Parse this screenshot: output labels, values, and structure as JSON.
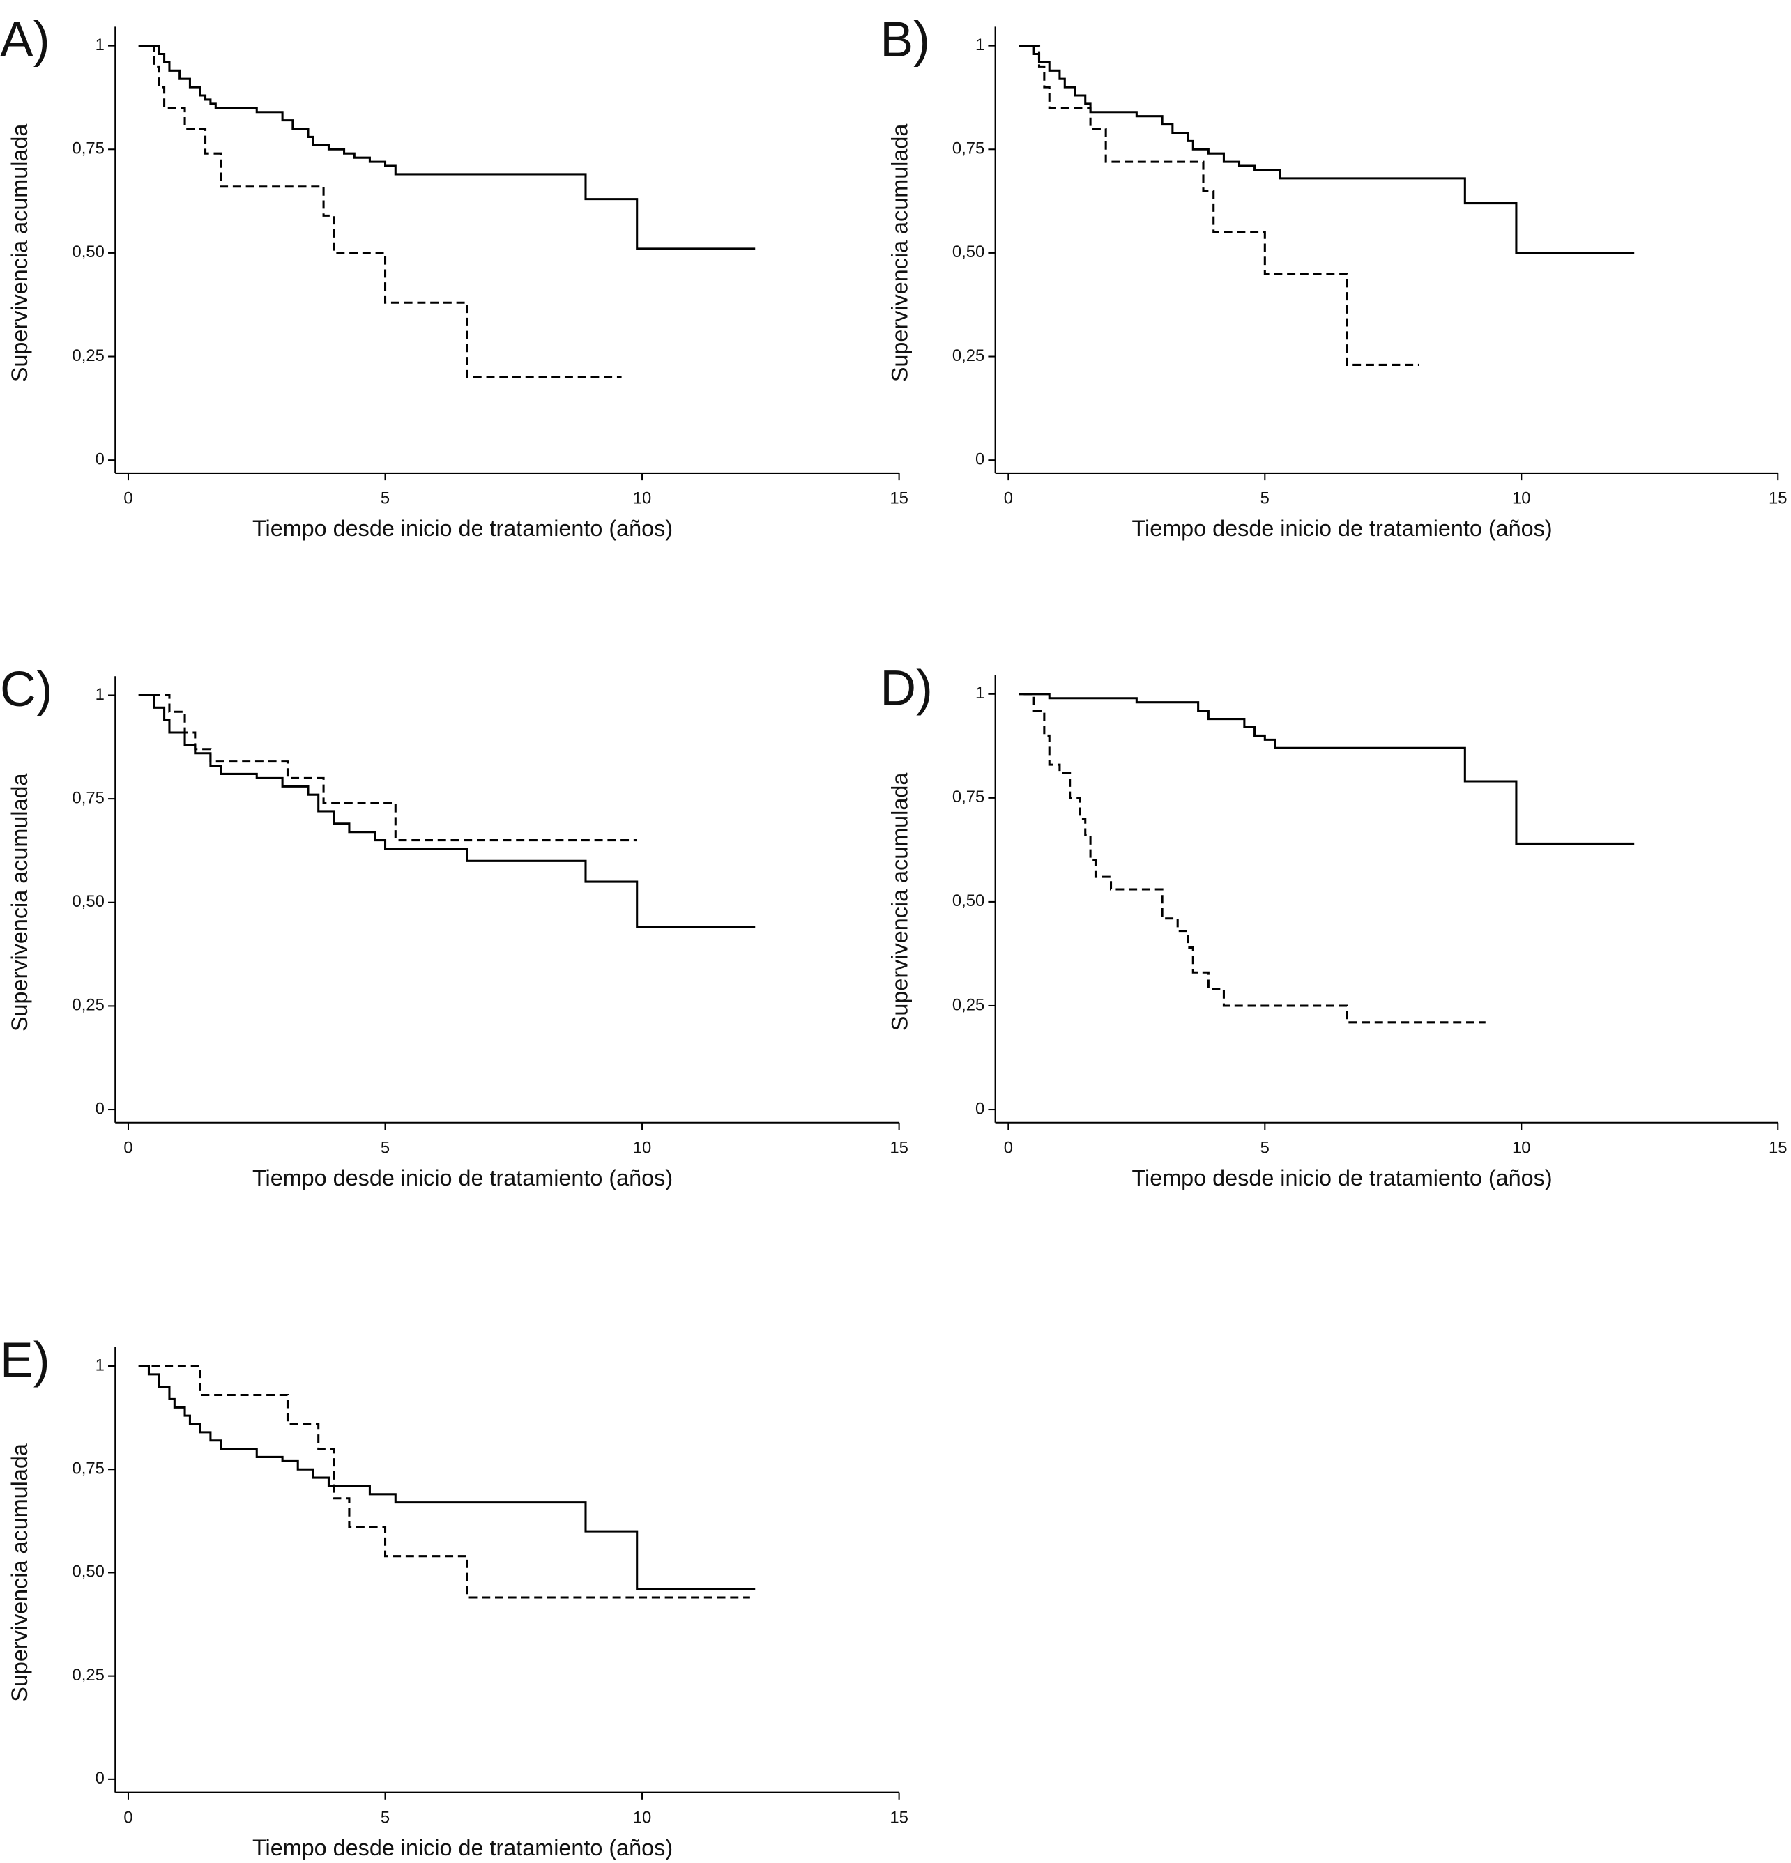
{
  "chart_data": [
    {
      "type": "line",
      "step": true,
      "label": "A)",
      "xlabel": "Tiempo desde inicio de tratamiento (años)",
      "ylabel": "Supervivencia acumulada",
      "xlim": [
        0,
        15
      ],
      "ylim": [
        0,
        1
      ],
      "xticks": [
        0,
        5,
        10,
        15
      ],
      "yticks": [
        0,
        {
          "value": 0.25,
          "label": "0,25"
        },
        {
          "value": 0.5,
          "label": "0,50"
        },
        {
          "value": 0.75,
          "label": "0,75"
        },
        1
      ],
      "series": [
        {
          "color": "#000000",
          "dashed": false,
          "x": [
            0.2,
            0.6,
            0.7,
            0.8,
            1.0,
            1.2,
            1.4,
            1.5,
            1.6,
            1.7,
            2.5,
            3.0,
            3.2,
            3.5,
            3.6,
            3.9,
            4.2,
            4.4,
            4.7,
            5.0,
            5.2,
            8.9,
            9.9,
            12.2
          ],
          "values": [
            1,
            0.98,
            0.96,
            0.94,
            0.92,
            0.9,
            0.88,
            0.87,
            0.86,
            0.85,
            0.84,
            0.82,
            0.8,
            0.78,
            0.76,
            0.75,
            0.74,
            0.73,
            0.72,
            0.71,
            0.69,
            0.63,
            0.51,
            0.51
          ]
        },
        {
          "color": "#000000",
          "dashed": true,
          "x": [
            0.2,
            0.5,
            0.6,
            0.7,
            1.1,
            1.5,
            1.8,
            3.8,
            4.0,
            5.0,
            6.6,
            9.6
          ],
          "values": [
            1,
            0.95,
            0.9,
            0.85,
            0.8,
            0.74,
            0.66,
            0.59,
            0.5,
            0.38,
            0.2,
            0.2
          ]
        }
      ]
    },
    {
      "type": "line",
      "step": true,
      "label": "B)",
      "xlabel": "Tiempo desde inicio de tratamiento (años)",
      "ylabel": "Supervivencia acumulada",
      "xlim": [
        0,
        15
      ],
      "ylim": [
        0,
        1
      ],
      "xticks": [
        0,
        5,
        10,
        15
      ],
      "yticks": [
        0,
        {
          "value": 0.25,
          "label": "0,25"
        },
        {
          "value": 0.5,
          "label": "0,50"
        },
        {
          "value": 0.75,
          "label": "0,75"
        },
        1
      ],
      "series": [
        {
          "color": "#000000",
          "dashed": false,
          "x": [
            0.2,
            0.5,
            0.6,
            0.8,
            1.0,
            1.1,
            1.3,
            1.5,
            1.6,
            2.5,
            3.0,
            3.2,
            3.5,
            3.6,
            3.9,
            4.2,
            4.5,
            4.8,
            5.3,
            8.9,
            9.9,
            12.2
          ],
          "values": [
            1,
            0.98,
            0.96,
            0.94,
            0.92,
            0.9,
            0.88,
            0.86,
            0.84,
            0.83,
            0.81,
            0.79,
            0.77,
            0.75,
            0.74,
            0.72,
            0.71,
            0.7,
            0.68,
            0.62,
            0.5,
            0.5
          ]
        },
        {
          "color": "#000000",
          "dashed": true,
          "x": [
            0.2,
            0.6,
            0.7,
            0.8,
            1.6,
            1.9,
            3.8,
            4.0,
            5.0,
            6.6,
            8.0
          ],
          "values": [
            1,
            0.95,
            0.9,
            0.85,
            0.8,
            0.72,
            0.65,
            0.55,
            0.45,
            0.23,
            0.23
          ]
        }
      ]
    },
    {
      "type": "line",
      "step": true,
      "label": "C)",
      "xlabel": "Tiempo desde inicio de tratamiento (años)",
      "ylabel": "Supervivencia acumulada",
      "xlim": [
        0,
        15
      ],
      "ylim": [
        0,
        1
      ],
      "xticks": [
        0,
        5,
        10,
        15
      ],
      "yticks": [
        0,
        {
          "value": 0.25,
          "label": "0,25"
        },
        {
          "value": 0.5,
          "label": "0,50"
        },
        {
          "value": 0.75,
          "label": "0,75"
        },
        1
      ],
      "series": [
        {
          "color": "#000000",
          "dashed": false,
          "x": [
            0.2,
            0.5,
            0.7,
            0.8,
            1.1,
            1.3,
            1.6,
            1.8,
            2.5,
            3.0,
            3.5,
            3.7,
            4.0,
            4.3,
            4.8,
            5.0,
            6.6,
            8.9,
            9.9,
            12.2
          ],
          "values": [
            1,
            0.97,
            0.94,
            0.91,
            0.88,
            0.86,
            0.83,
            0.81,
            0.8,
            0.78,
            0.76,
            0.72,
            0.69,
            0.67,
            0.65,
            0.63,
            0.6,
            0.55,
            0.44,
            0.44
          ]
        },
        {
          "color": "#000000",
          "dashed": true,
          "x": [
            0.2,
            0.8,
            1.1,
            1.3,
            1.6,
            3.1,
            3.8,
            5.2,
            9.9
          ],
          "values": [
            1,
            0.96,
            0.91,
            0.87,
            0.84,
            0.8,
            0.74,
            0.65,
            0.65
          ]
        }
      ]
    },
    {
      "type": "line",
      "step": true,
      "label": "D)",
      "xlabel": "Tiempo desde inicio de tratamiento (años)",
      "ylabel": "Supervivencia acumulada",
      "xlim": [
        0,
        15
      ],
      "ylim": [
        0,
        1
      ],
      "xticks": [
        0,
        5,
        10,
        15
      ],
      "yticks": [
        0,
        {
          "value": 0.25,
          "label": "0,25"
        },
        {
          "value": 0.5,
          "label": "0,50"
        },
        {
          "value": 0.75,
          "label": "0,75"
        },
        1
      ],
      "series": [
        {
          "color": "#000000",
          "dashed": false,
          "x": [
            0.2,
            0.8,
            2.5,
            3.7,
            3.9,
            4.6,
            4.8,
            5.0,
            5.2,
            8.9,
            9.9,
            12.2
          ],
          "values": [
            1,
            0.99,
            0.98,
            0.96,
            0.94,
            0.92,
            0.9,
            0.89,
            0.87,
            0.79,
            0.64,
            0.64
          ]
        },
        {
          "color": "#000000",
          "dashed": true,
          "x": [
            0.3,
            0.5,
            0.7,
            0.8,
            1.0,
            1.2,
            1.4,
            1.5,
            1.6,
            1.7,
            2.0,
            3.0,
            3.3,
            3.5,
            3.6,
            3.9,
            4.2,
            6.6,
            9.3
          ],
          "values": [
            1,
            0.96,
            0.9,
            0.83,
            0.81,
            0.75,
            0.7,
            0.66,
            0.6,
            0.56,
            0.53,
            0.46,
            0.43,
            0.39,
            0.33,
            0.29,
            0.25,
            0.21,
            0.21
          ]
        }
      ]
    },
    {
      "type": "line",
      "step": true,
      "label": "E)",
      "xlabel": "Tiempo desde inicio de tratamiento (años)",
      "ylabel": "Supervivencia acumulada",
      "xlim": [
        0,
        15
      ],
      "ylim": [
        0,
        1
      ],
      "xticks": [
        0,
        5,
        10,
        15
      ],
      "yticks": [
        0,
        {
          "value": 0.25,
          "label": "0,25"
        },
        {
          "value": 0.5,
          "label": "0,50"
        },
        {
          "value": 0.75,
          "label": "0,75"
        },
        1
      ],
      "series": [
        {
          "color": "#000000",
          "dashed": false,
          "x": [
            0.2,
            0.4,
            0.6,
            0.8,
            0.9,
            1.1,
            1.2,
            1.4,
            1.6,
            1.8,
            2.5,
            3.0,
            3.3,
            3.6,
            3.9,
            4.7,
            5.2,
            8.9,
            9.9,
            12.2
          ],
          "values": [
            1,
            0.98,
            0.95,
            0.92,
            0.9,
            0.88,
            0.86,
            0.84,
            0.82,
            0.8,
            0.78,
            0.77,
            0.75,
            0.73,
            0.71,
            0.69,
            0.67,
            0.6,
            0.46,
            0.46
          ]
        },
        {
          "color": "#000000",
          "dashed": true,
          "x": [
            0.2,
            1.4,
            3.1,
            3.7,
            4.0,
            4.3,
            5.0,
            6.6,
            12.1
          ],
          "values": [
            1,
            0.93,
            0.86,
            0.8,
            0.68,
            0.61,
            0.54,
            0.44,
            0.44
          ]
        }
      ]
    }
  ]
}
